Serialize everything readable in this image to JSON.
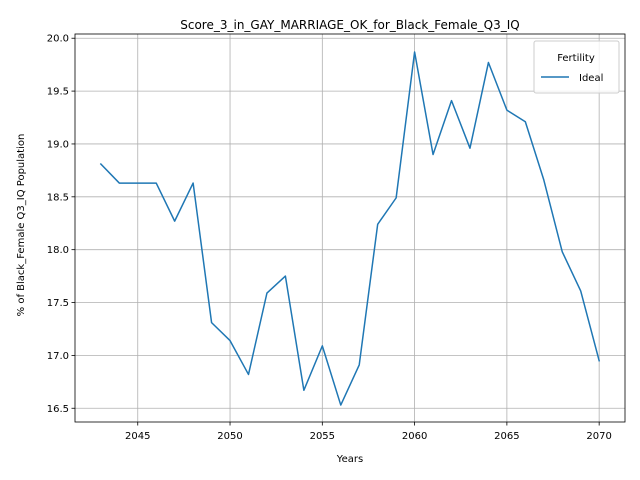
{
  "chart_data": {
    "type": "line",
    "title": "Score_3_in_GAY_MARRIAGE_OK_for_Black_Female_Q3_IQ",
    "xlabel": "Years",
    "ylabel": "% of Black_Female Q3_IQ Population",
    "xlim": [
      2041.6,
      2071.4
    ],
    "ylim": [
      16.37,
      20.04
    ],
    "xticks": [
      2045,
      2050,
      2055,
      2060,
      2065,
      2070
    ],
    "yticks": [
      16.5,
      17.0,
      17.5,
      18.0,
      18.5,
      19.0,
      19.5,
      20.0
    ],
    "ytick_labels": [
      "16.5",
      "17.0",
      "17.5",
      "18.0",
      "18.5",
      "19.0",
      "19.5",
      "20.0"
    ],
    "grid": true,
    "legend": {
      "title": "Fertility",
      "position": "top-right"
    },
    "series": [
      {
        "name": "Ideal",
        "color": "#1f77b4",
        "x": [
          2043,
          2044,
          2045,
          2046,
          2047,
          2048,
          2049,
          2050,
          2051,
          2052,
          2053,
          2054,
          2055,
          2056,
          2057,
          2058,
          2059,
          2060,
          2061,
          2062,
          2063,
          2064,
          2065,
          2066,
          2067,
          2068,
          2069,
          2070
        ],
        "y": [
          18.81,
          18.63,
          18.63,
          18.63,
          18.27,
          18.63,
          17.31,
          17.14,
          16.82,
          17.59,
          17.75,
          16.67,
          17.09,
          16.53,
          16.91,
          18.24,
          18.49,
          19.87,
          18.9,
          19.41,
          18.96,
          19.77,
          19.32,
          19.21,
          18.66,
          17.98,
          17.61,
          16.95
        ]
      }
    ]
  }
}
